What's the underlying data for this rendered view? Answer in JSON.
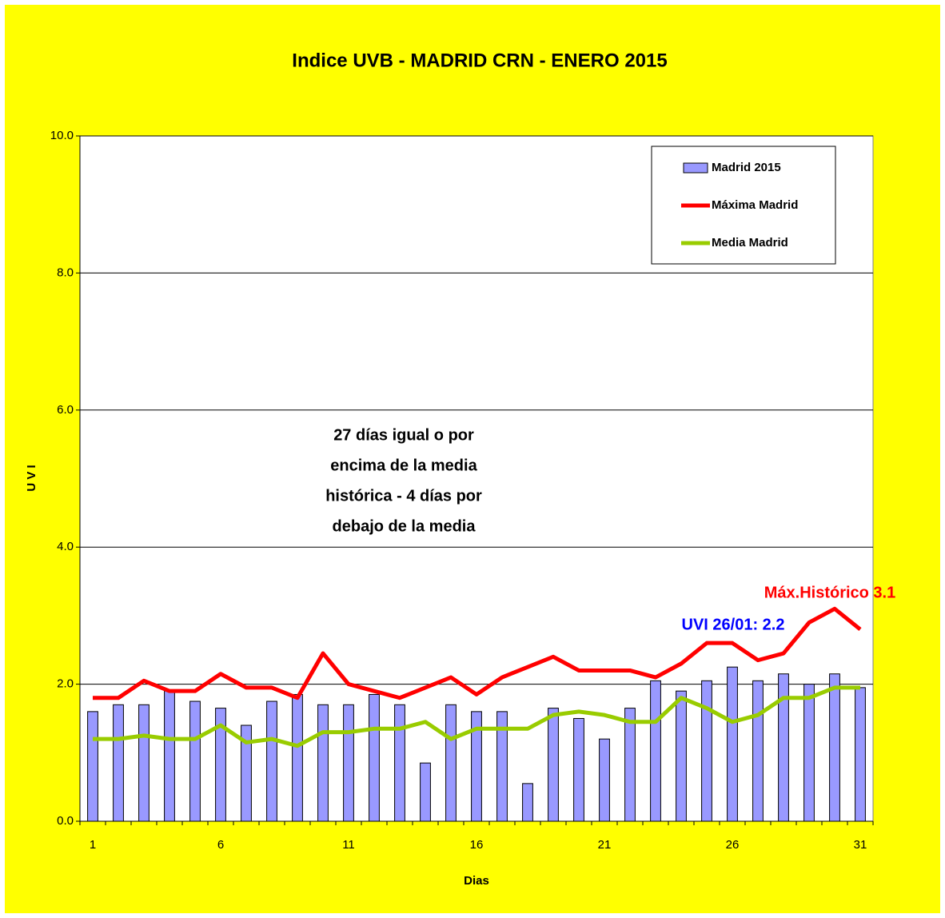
{
  "chart_data": {
    "type": "bar_line",
    "title": "Indice UVB -  MADRID CRN -  ENERO 2015",
    "y_label": "U V I",
    "x_label": "Dias",
    "categories": [
      1,
      null,
      null,
      null,
      null,
      6,
      null,
      null,
      null,
      null,
      11,
      null,
      null,
      null,
      null,
      16,
      null,
      null,
      null,
      null,
      21,
      null,
      null,
      null,
      null,
      26,
      null,
      null,
      null,
      null,
      31
    ],
    "series": [
      {
        "name": "Madrid 2015",
        "kind": "bar",
        "color": "#9999ff",
        "values": [
          1.6,
          1.7,
          1.7,
          1.9,
          1.75,
          1.65,
          1.4,
          1.75,
          1.85,
          1.7,
          1.7,
          1.85,
          1.7,
          0.85,
          1.7,
          1.6,
          1.6,
          0.55,
          1.65,
          1.5,
          1.2,
          1.65,
          2.05,
          1.9,
          2.05,
          2.25,
          2.05,
          2.15,
          2.0,
          2.15,
          1.95
        ]
      },
      {
        "name": "Máxima Madrid",
        "kind": "line",
        "color": "#ff0000",
        "values": [
          1.8,
          1.8,
          2.05,
          1.9,
          1.9,
          2.15,
          1.95,
          1.95,
          1.8,
          2.45,
          2.0,
          1.9,
          1.8,
          1.95,
          2.1,
          1.85,
          2.1,
          2.25,
          2.4,
          2.2,
          2.2,
          2.2,
          2.1,
          2.3,
          2.6,
          2.6,
          2.35,
          2.45,
          2.9,
          3.1,
          2.8
        ]
      },
      {
        "name": "Media Madrid",
        "kind": "line",
        "color": "#99cc00",
        "values": [
          1.2,
          1.2,
          1.25,
          1.2,
          1.2,
          1.4,
          1.15,
          1.2,
          1.1,
          1.3,
          1.3,
          1.35,
          1.35,
          1.45,
          1.2,
          1.35,
          1.35,
          1.35,
          1.55,
          1.6,
          1.55,
          1.45,
          1.45,
          1.8,
          1.65,
          1.45,
          1.55,
          1.8,
          1.8,
          1.95,
          1.95
        ]
      }
    ],
    "ylim": [
      0,
      10
    ],
    "yticks": [
      {
        "value": 0,
        "label": "0.0"
      },
      {
        "value": 2,
        "label": "2.0"
      },
      {
        "value": 4,
        "label": "4.0"
      },
      {
        "value": 6,
        "label": "6.0"
      },
      {
        "value": 8,
        "label": "8.0"
      },
      {
        "value": 10,
        "label": "10.0"
      }
    ],
    "grid": true,
    "legend": "upper right",
    "note_lines": [
      "27 días igual o por",
      "encima de la media",
      "histórica - 4 días por",
      "debajo de la media"
    ],
    "labels": [
      "UVI  26/01: 2.2",
      "Máx.Histórico 3.1"
    ]
  }
}
